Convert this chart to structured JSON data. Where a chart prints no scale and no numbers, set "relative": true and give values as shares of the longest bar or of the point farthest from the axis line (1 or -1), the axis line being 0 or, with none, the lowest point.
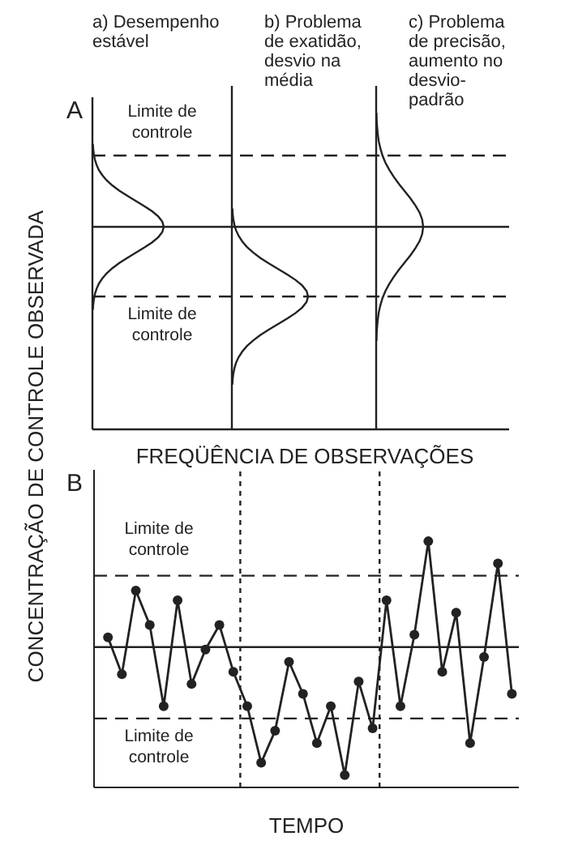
{
  "chart_data": [
    {
      "type": "other",
      "title": "A",
      "ylabel": "CONCENTRAÇÃO DE CONTROLE OBSERVADA",
      "xlabel": "FREQÜÊNCIA DE OBSERVAÇÕES",
      "categories": [
        "a) Desempenho estável",
        "b) Problema de exatidão, desvio na média",
        "c) Problema de precisão, aumento no desvio-padrão"
      ],
      "annotations": [
        "Limite de controle",
        "Limite de controle"
      ]
    },
    {
      "type": "line",
      "title": "B",
      "xlabel": "TEMPO",
      "relative": true,
      "color": "#222222",
      "marker": "circle",
      "line_style": "solid",
      "categories": [
        null,
        null,
        null,
        null,
        null,
        null,
        null,
        null,
        null,
        null,
        null,
        null,
        null,
        null,
        null,
        null,
        null,
        null,
        null,
        null,
        null,
        null,
        null,
        null,
        null,
        null,
        null,
        null,
        null,
        null
      ],
      "values": [
        0.61,
        0.46,
        0.8,
        0.66,
        0.33,
        0.76,
        0.42,
        0.56,
        0.66,
        0.47,
        0.33,
        0.1,
        0.23,
        0.51,
        0.38,
        0.18,
        0.33,
        0.05,
        0.43,
        0.24,
        0.76,
        0.33,
        0.62,
        1,
        0.47,
        0.71,
        0.18,
        0.53,
        0.91,
        0.38
      ],
      "ref_lines": [
        {
          "axis": "y",
          "value": 0.86,
          "label": "Limite de controle",
          "line_style": "dashed"
        },
        {
          "axis": "y",
          "value": 0.57,
          "line_style": "solid"
        },
        {
          "axis": "y",
          "value": 0.28,
          "label": "Limite de controle",
          "line_style": "dashed"
        }
      ]
    }
  ]
}
